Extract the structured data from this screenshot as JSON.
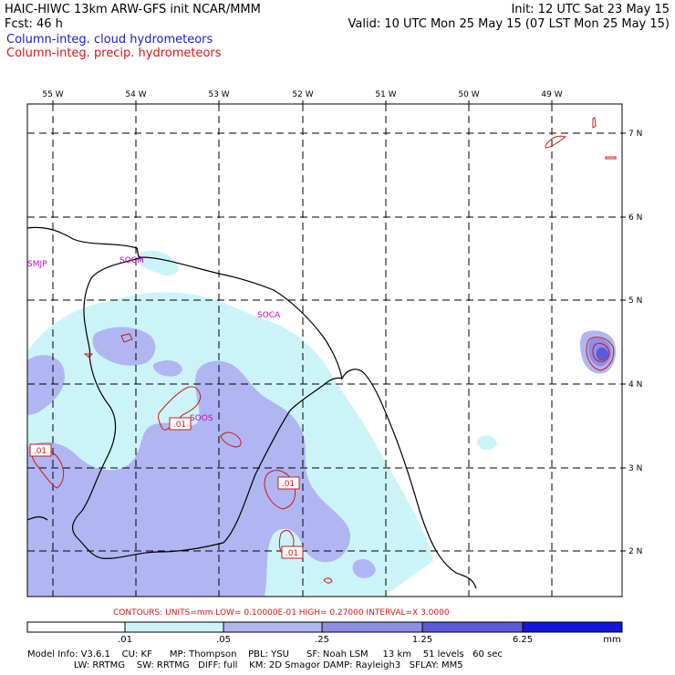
{
  "header": {
    "left_line1": "HAIC-HIWC 13km ARW-GFS init   NCAR/MMM",
    "left_line2": "Fcst:   46 h",
    "right_line1": "Init: 12 UTC Sat 23 May 15",
    "right_line2": "Valid: 10 UTC Mon 25 May 15 (07 LST Mon 25 May 15)",
    "legend_cloud": "Column-integ. cloud hydrometeors",
    "legend_precip": "Column-integ. precip. hydrometeors",
    "colors": {
      "cloud": "#1a1ad0",
      "precip": "#d01818"
    }
  },
  "map": {
    "lon_labels": [
      "55 W",
      "54 W",
      "53 W",
      "52 W",
      "51 W",
      "50 W",
      "49 W"
    ],
    "lat_labels": [
      "7 N",
      "6 N",
      "5 N",
      "4 N",
      "3 N",
      "2 N"
    ],
    "stations": [
      "SMJP",
      "SOCM",
      "SOCA",
      "SOOS"
    ],
    "contour_labels": [
      ".01",
      ".01",
      ".01",
      ".01"
    ],
    "station_color": "#cc00cc",
    "contour_color": "#d01818"
  },
  "contours_info": {
    "text": "CONTOURS:  UNITS=mm  LOW= 0.10000E-01  HIGH= 0.27000      INTERVAL=X  3.0000"
  },
  "colorbar": {
    "labels": [
      ".01",
      ".05",
      ".25",
      "1.25",
      "6.25",
      "mm"
    ],
    "colors": [
      "#ffffff",
      "#ccf4f8",
      "#b0b6f2",
      "#8e8ee8",
      "#5a5adc",
      "#1414e0"
    ]
  },
  "model_info": {
    "line1": "Model Info: V3.6.1    CU: KF      MP: Thompson    PBL: YSU      SF: Noah LSM     13 km    51 levels   60 sec",
    "line2": "                LW: RRTMG    SW: RRTMG   DIFF: full    KM: 2D Smagor DAMP: Rayleigh3   SFLAY: MM5"
  }
}
